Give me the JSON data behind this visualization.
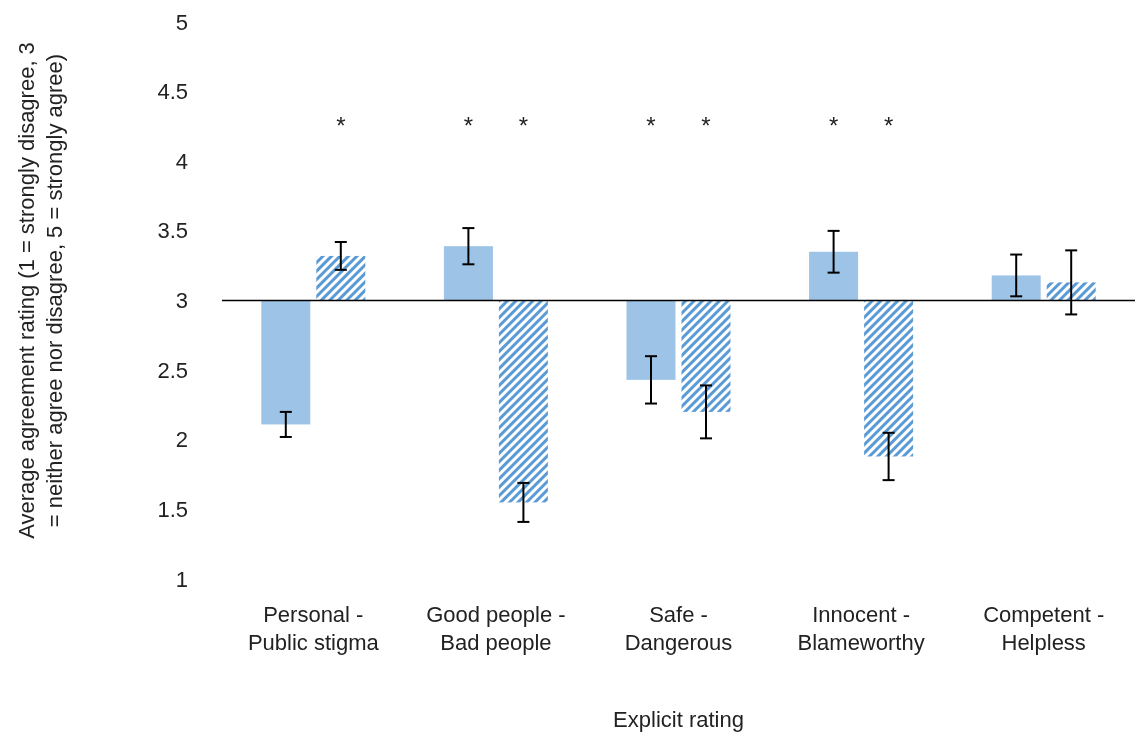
{
  "chart_data": {
    "type": "bar",
    "xlabel": "Explicit rating",
    "ylabel": "Average agreement rating (1 = strongly disagree, 3 = neither agree nor disagree, 5 = strongly agree)",
    "categories": [
      "Personal - Public stigma",
      "Good people - Bad people",
      "Safe - Dangerous",
      "Innocent - Blameworthy",
      "Competent - Helpless"
    ],
    "series": [
      {
        "color": "#9dc3e6",
        "base": [
          3,
          3,
          3,
          3,
          3
        ],
        "values": [
          -0.89,
          0.39,
          -0.57,
          0.35,
          0.18
        ],
        "errors": [
          0.09,
          0.13,
          0.17,
          0.15,
          0.15
        ]
      },
      {
        "color": "#5b9bd5",
        "base": [
          3,
          3,
          3,
          3,
          3
        ],
        "values": [
          0.32,
          -1.45,
          -0.8,
          -1.12,
          0.13
        ],
        "errors": [
          0.1,
          0.14,
          0.19,
          0.17,
          0.23
        ]
      }
    ],
    "ylim": [
      1,
      5
    ],
    "yticks": [
      1,
      1.5,
      2,
      2.5,
      3,
      3.5,
      4,
      4.5,
      5
    ],
    "annotations": [
      "*",
      "*",
      "*",
      "*",
      "*",
      "*",
      "*"
    ]
  }
}
